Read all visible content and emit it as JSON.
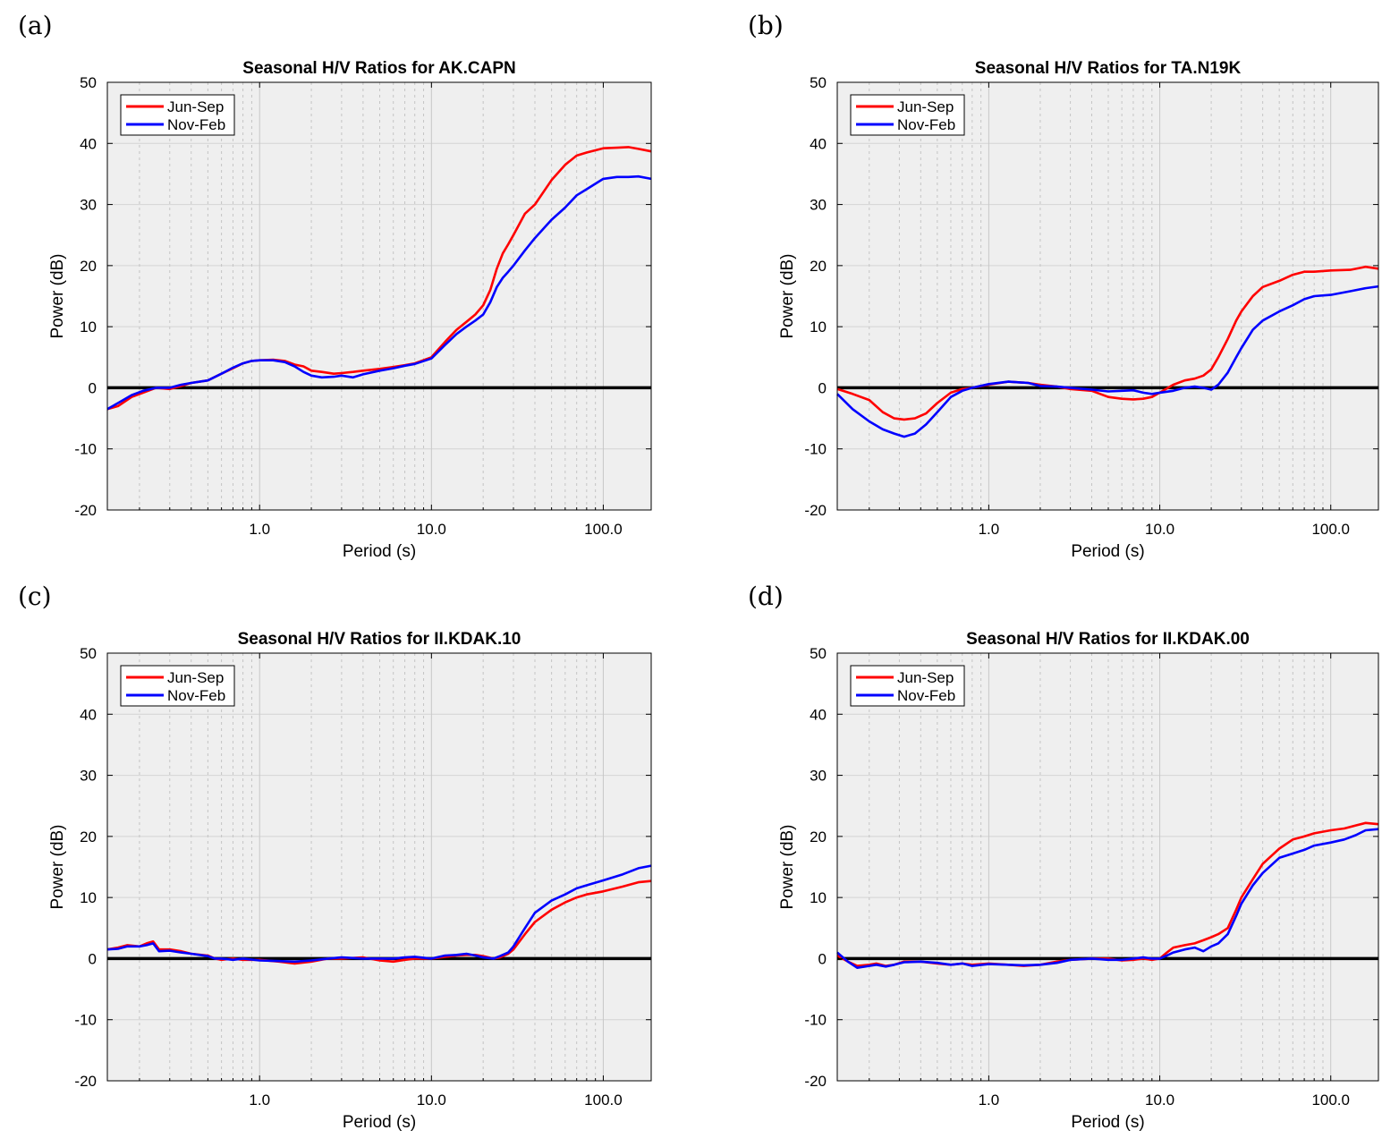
{
  "chart_data": [
    {
      "type": "line",
      "panel": "(a)",
      "title": "Seasonal H/V Ratios for AK.CAPN",
      "xlabel": "Period (s)",
      "ylabel": "Power (dB)",
      "xscale": "log",
      "xlim": [
        0.13,
        190
      ],
      "ylim": [
        -20,
        50
      ],
      "xticks": [
        1,
        10,
        100
      ],
      "xtick_labels": [
        "1.0",
        "10.0",
        "100.0"
      ],
      "yticks": [
        -20,
        -10,
        0,
        10,
        20,
        30,
        40,
        50
      ],
      "grid": true,
      "legend_position": "top-left",
      "zero_line": 0,
      "series": [
        {
          "name": "Jun-Sep",
          "color": "#ff0000",
          "x": [
            0.13,
            0.15,
            0.18,
            0.21,
            0.25,
            0.3,
            0.35,
            0.4,
            0.5,
            0.6,
            0.7,
            0.8,
            0.9,
            1.0,
            1.2,
            1.4,
            1.6,
            1.8,
            2.0,
            2.3,
            2.7,
            3.0,
            3.5,
            4.0,
            5.0,
            6.0,
            7.0,
            8.0,
            10,
            12,
            14,
            16,
            18,
            20,
            22,
            24,
            26,
            28,
            30,
            35,
            40,
            50,
            60,
            70,
            80,
            100,
            120,
            140,
            160,
            190
          ],
          "y": [
            -3.5,
            -3.0,
            -1.5,
            -0.8,
            0.0,
            -0.2,
            0.3,
            0.8,
            1.2,
            2.3,
            3.2,
            4.0,
            4.4,
            4.5,
            4.6,
            4.4,
            3.8,
            3.5,
            2.8,
            2.6,
            2.3,
            2.4,
            2.6,
            2.8,
            3.1,
            3.4,
            3.7,
            4.0,
            5.0,
            7.5,
            9.5,
            10.8,
            12.0,
            13.5,
            16.0,
            19.5,
            22.0,
            23.5,
            25.0,
            28.5,
            30.0,
            34.0,
            36.5,
            38.0,
            38.5,
            39.2,
            39.3,
            39.4,
            39.1,
            38.7
          ]
        },
        {
          "name": "Nov-Feb",
          "color": "#0000ff",
          "x": [
            0.13,
            0.15,
            0.18,
            0.21,
            0.25,
            0.3,
            0.35,
            0.4,
            0.5,
            0.6,
            0.7,
            0.8,
            0.9,
            1.0,
            1.2,
            1.4,
            1.6,
            1.8,
            2.0,
            2.3,
            2.7,
            3.0,
            3.5,
            4.0,
            5.0,
            6.0,
            7.0,
            8.0,
            10,
            12,
            14,
            16,
            18,
            20,
            22,
            24,
            26,
            28,
            30,
            35,
            40,
            50,
            60,
            70,
            80,
            100,
            120,
            140,
            160,
            190
          ],
          "y": [
            -3.5,
            -2.5,
            -1.2,
            -0.5,
            0.0,
            0.0,
            0.5,
            0.8,
            1.2,
            2.3,
            3.3,
            4.0,
            4.4,
            4.5,
            4.5,
            4.2,
            3.5,
            2.6,
            2.0,
            1.7,
            1.8,
            2.0,
            1.7,
            2.2,
            2.8,
            3.2,
            3.6,
            3.9,
            4.8,
            7.0,
            8.8,
            10.0,
            11.0,
            12.0,
            14.0,
            16.5,
            18.0,
            19.0,
            20.0,
            22.5,
            24.5,
            27.5,
            29.5,
            31.5,
            32.5,
            34.2,
            34.5,
            34.5,
            34.6,
            34.2
          ]
        }
      ]
    },
    {
      "type": "line",
      "panel": "(b)",
      "title": "Seasonal H/V Ratios for TA.N19K",
      "xlabel": "Period (s)",
      "ylabel": "Power (dB)",
      "xscale": "log",
      "xlim": [
        0.13,
        190
      ],
      "ylim": [
        -20,
        50
      ],
      "xticks": [
        1,
        10,
        100
      ],
      "xtick_labels": [
        "1.0",
        "10.0",
        "100.0"
      ],
      "yticks": [
        -20,
        -10,
        0,
        10,
        20,
        30,
        40,
        50
      ],
      "grid": true,
      "legend_position": "top-left",
      "zero_line": 0,
      "series": [
        {
          "name": "Jun-Sep",
          "color": "#ff0000",
          "x": [
            0.13,
            0.16,
            0.2,
            0.24,
            0.28,
            0.32,
            0.37,
            0.43,
            0.5,
            0.6,
            0.7,
            0.8,
            1.0,
            1.3,
            1.7,
            2.0,
            2.5,
            3.0,
            4.0,
            5.0,
            6.0,
            7.0,
            8.0,
            9.0,
            10,
            12,
            14,
            16,
            18,
            20,
            22,
            25,
            28,
            30,
            35,
            40,
            50,
            60,
            70,
            80,
            100,
            130,
            160,
            190
          ],
          "y": [
            -0.2,
            -1.0,
            -2.0,
            -4.0,
            -5.0,
            -5.2,
            -5.0,
            -4.2,
            -2.5,
            -0.8,
            -0.2,
            0.0,
            0.5,
            1.0,
            0.8,
            0.5,
            0.2,
            -0.2,
            -0.5,
            -1.5,
            -1.8,
            -1.9,
            -1.8,
            -1.5,
            -0.8,
            0.5,
            1.2,
            1.5,
            2.0,
            3.0,
            5.0,
            8.0,
            11.0,
            12.5,
            15.0,
            16.5,
            17.5,
            18.5,
            19.0,
            19.0,
            19.2,
            19.3,
            19.8,
            19.5
          ]
        },
        {
          "name": "Nov-Feb",
          "color": "#0000ff",
          "x": [
            0.13,
            0.16,
            0.2,
            0.24,
            0.28,
            0.32,
            0.37,
            0.43,
            0.5,
            0.6,
            0.7,
            0.8,
            1.0,
            1.3,
            1.7,
            2.0,
            2.5,
            3.0,
            4.0,
            5.0,
            6.0,
            7.0,
            8.0,
            9.0,
            10,
            12,
            14,
            16,
            18,
            20,
            22,
            25,
            28,
            30,
            35,
            40,
            50,
            60,
            70,
            80,
            100,
            130,
            160,
            190
          ],
          "y": [
            -1.0,
            -3.5,
            -5.5,
            -6.8,
            -7.5,
            -8.0,
            -7.5,
            -6.0,
            -4.0,
            -1.5,
            -0.5,
            0.0,
            0.6,
            1.0,
            0.8,
            0.3,
            0.2,
            0.0,
            -0.3,
            -0.6,
            -0.5,
            -0.4,
            -0.8,
            -1.0,
            -0.8,
            -0.5,
            0.0,
            0.2,
            0.0,
            -0.3,
            0.5,
            2.5,
            5.0,
            6.5,
            9.5,
            11.0,
            12.5,
            13.5,
            14.5,
            15.0,
            15.2,
            15.8,
            16.3,
            16.6
          ]
        }
      ]
    },
    {
      "type": "line",
      "panel": "(c)",
      "title": "Seasonal H/V Ratios for II.KDAK.10",
      "xlabel": "Period (s)",
      "ylabel": "Power (dB)",
      "xscale": "log",
      "xlim": [
        0.13,
        190
      ],
      "ylim": [
        -20,
        50
      ],
      "xticks": [
        1,
        10,
        100
      ],
      "xtick_labels": [
        "1.0",
        "10.0",
        "100.0"
      ],
      "yticks": [
        -20,
        -10,
        0,
        10,
        20,
        30,
        40,
        50
      ],
      "grid": true,
      "legend_position": "top-left",
      "zero_line": 0,
      "series": [
        {
          "name": "Jun-Sep",
          "color": "#ff0000",
          "x": [
            0.13,
            0.15,
            0.17,
            0.2,
            0.22,
            0.24,
            0.26,
            0.3,
            0.35,
            0.4,
            0.5,
            0.55,
            0.6,
            0.7,
            0.8,
            1.0,
            1.3,
            1.6,
            2.0,
            2.5,
            3.0,
            4.0,
            5.0,
            6.0,
            7.0,
            8.0,
            10,
            12,
            14,
            16,
            18,
            20,
            23,
            25,
            28,
            30,
            35,
            40,
            50,
            60,
            70,
            80,
            100,
            130,
            160,
            190
          ],
          "y": [
            1.5,
            1.8,
            2.2,
            2.0,
            2.5,
            2.8,
            1.5,
            1.5,
            1.2,
            0.8,
            0.5,
            0.0,
            -0.2,
            0.0,
            -0.2,
            -0.2,
            -0.5,
            -0.8,
            -0.5,
            0.0,
            0.0,
            0.2,
            -0.3,
            -0.5,
            -0.2,
            0.0,
            0.0,
            0.3,
            0.5,
            0.6,
            0.6,
            0.4,
            0.0,
            0.2,
            0.8,
            1.5,
            4.0,
            6.0,
            8.0,
            9.2,
            10.0,
            10.5,
            11.0,
            11.8,
            12.5,
            12.7
          ]
        },
        {
          "name": "Nov-Feb",
          "color": "#0000ff",
          "x": [
            0.13,
            0.15,
            0.17,
            0.2,
            0.22,
            0.24,
            0.26,
            0.3,
            0.35,
            0.4,
            0.5,
            0.55,
            0.6,
            0.7,
            0.8,
            1.0,
            1.3,
            1.6,
            2.0,
            2.5,
            3.0,
            4.0,
            5.0,
            6.0,
            7.0,
            8.0,
            10,
            12,
            14,
            16,
            18,
            20,
            23,
            25,
            28,
            30,
            35,
            40,
            50,
            60,
            70,
            80,
            100,
            130,
            160,
            190
          ],
          "y": [
            1.5,
            1.6,
            2.0,
            2.0,
            2.2,
            2.5,
            1.2,
            1.3,
            1.0,
            0.8,
            0.4,
            0.0,
            0.0,
            -0.2,
            0.0,
            -0.3,
            -0.4,
            -0.5,
            -0.3,
            0.0,
            0.2,
            0.0,
            0.0,
            0.0,
            0.2,
            0.3,
            0.0,
            0.5,
            0.6,
            0.8,
            0.5,
            0.2,
            0.0,
            0.4,
            1.0,
            2.0,
            5.0,
            7.5,
            9.5,
            10.5,
            11.5,
            12.0,
            12.8,
            13.8,
            14.8,
            15.2
          ]
        }
      ]
    },
    {
      "type": "line",
      "panel": "(d)",
      "title": "Seasonal H/V Ratios for II.KDAK.00",
      "xlabel": "Period (s)",
      "ylabel": "Power (dB)",
      "xscale": "log",
      "xlim": [
        0.13,
        190
      ],
      "ylim": [
        -20,
        50
      ],
      "xticks": [
        1,
        10,
        100
      ],
      "xtick_labels": [
        "1.0",
        "10.0",
        "100.0"
      ],
      "yticks": [
        -20,
        -10,
        0,
        10,
        20,
        30,
        40,
        50
      ],
      "grid": true,
      "legend_position": "top-left",
      "zero_line": 0,
      "series": [
        {
          "name": "Jun-Sep",
          "color": "#ff0000",
          "x": [
            0.13,
            0.15,
            0.17,
            0.2,
            0.22,
            0.25,
            0.28,
            0.32,
            0.4,
            0.5,
            0.6,
            0.7,
            0.8,
            1.0,
            1.3,
            1.6,
            2.0,
            2.5,
            3.0,
            4.0,
            5.0,
            6.0,
            7.0,
            8.0,
            9.0,
            10,
            11,
            12,
            14,
            16,
            18,
            20,
            22,
            25,
            28,
            30,
            35,
            40,
            50,
            60,
            70,
            80,
            100,
            120,
            140,
            160,
            190
          ],
          "y": [
            0.5,
            -0.5,
            -1.2,
            -1.0,
            -0.8,
            -1.2,
            -1.0,
            -0.5,
            -0.5,
            -0.8,
            -1.0,
            -0.8,
            -1.0,
            -0.8,
            -1.0,
            -1.2,
            -1.0,
            -0.5,
            -0.2,
            0.0,
            0.0,
            -0.3,
            -0.2,
            0.0,
            -0.2,
            0.0,
            1.0,
            1.8,
            2.2,
            2.5,
            3.0,
            3.5,
            4.0,
            5.0,
            8.0,
            10.0,
            13.0,
            15.5,
            18.0,
            19.5,
            20.0,
            20.5,
            21.0,
            21.3,
            21.8,
            22.2,
            22.0
          ]
        },
        {
          "name": "Nov-Feb",
          "color": "#0000ff",
          "x": [
            0.13,
            0.15,
            0.17,
            0.2,
            0.22,
            0.25,
            0.28,
            0.32,
            0.4,
            0.5,
            0.6,
            0.7,
            0.8,
            1.0,
            1.3,
            1.6,
            2.0,
            2.5,
            3.0,
            4.0,
            5.0,
            6.0,
            7.0,
            8.0,
            9.0,
            10,
            11,
            12,
            14,
            16,
            18,
            20,
            22,
            25,
            28,
            30,
            35,
            40,
            50,
            60,
            70,
            80,
            100,
            120,
            140,
            160,
            190
          ],
          "y": [
            1.0,
            -0.5,
            -1.5,
            -1.2,
            -1.0,
            -1.3,
            -1.0,
            -0.6,
            -0.5,
            -0.7,
            -1.0,
            -0.8,
            -1.2,
            -0.9,
            -1.0,
            -1.1,
            -1.0,
            -0.7,
            -0.2,
            0.0,
            -0.2,
            -0.2,
            0.0,
            0.2,
            0.0,
            0.0,
            0.5,
            1.0,
            1.5,
            1.8,
            1.2,
            2.0,
            2.5,
            4.0,
            7.0,
            9.0,
            12.0,
            14.0,
            16.5,
            17.2,
            17.8,
            18.5,
            19.0,
            19.5,
            20.2,
            21.0,
            21.2
          ]
        }
      ]
    }
  ]
}
